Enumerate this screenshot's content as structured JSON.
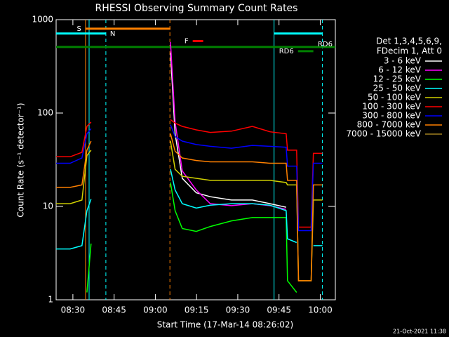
{
  "chart_data": {
    "type": "line",
    "title": "RHESSI Observing Summary Count Rates",
    "xlabel": "Start Time (17-Mar-14 08:26:02)",
    "ylabel": "Count Rate (s⁻¹ detector⁻¹)",
    "footer": "21-Oct-2021 11:38",
    "legend_header": [
      "Det 1,3,4,5,6,9,",
      "FDecim 1, Att 0"
    ],
    "log_y": true,
    "xlim": [
      23.9,
      125.5
    ],
    "ylim": [
      1,
      1000
    ],
    "xticks": [
      {
        "value": 30,
        "label": "08:30"
      },
      {
        "value": 45,
        "label": "08:45"
      },
      {
        "value": 60,
        "label": "09:00"
      },
      {
        "value": 75,
        "label": "09:15"
      },
      {
        "value": 90,
        "label": "09:30"
      },
      {
        "value": 105,
        "label": "09:45"
      },
      {
        "value": 120,
        "label": "10:00"
      }
    ],
    "yticks": [
      1,
      10,
      100,
      1000
    ],
    "x": [
      23.9,
      29.0,
      33.3,
      35.1,
      36.6,
      37.5,
      65.5,
      67.2,
      69.8,
      74.9,
      80.0,
      87.7,
      95.3,
      101.7,
      107.6,
      108.1,
      111.4,
      112.1,
      116.7,
      117.5,
      120.8
    ],
    "series": [
      {
        "name": "3 - 6 keV",
        "color": "#ffffff",
        "values": [
          null,
          null,
          null,
          null,
          null,
          null,
          445,
          60,
          20,
          14,
          12.7,
          11.7,
          11.7,
          10.7,
          9.8,
          null,
          null,
          null,
          null,
          null,
          null
        ]
      },
      {
        "name": "6 - 12 keV",
        "color": "#ff00ff",
        "values": [
          null,
          null,
          null,
          null,
          null,
          null,
          575,
          80,
          24,
          15,
          10.7,
          10.2,
          10.7,
          10.2,
          9.3,
          null,
          null,
          null,
          null,
          null,
          null
        ]
      },
      {
        "name": "12 - 25 keV",
        "color": "#00ff00",
        "values": [
          null,
          null,
          null,
          1.2,
          4,
          null,
          18,
          9,
          5.8,
          5.4,
          6.1,
          7,
          7.6,
          7.6,
          7.6,
          1.6,
          1.2,
          null,
          null,
          null,
          null
        ]
      },
      {
        "name": "25 - 50 keV",
        "color": "#00ffff",
        "values": [
          3.5,
          3.5,
          3.8,
          9,
          12,
          null,
          25,
          15,
          10.7,
          9.6,
          10.3,
          10.7,
          10.7,
          10.3,
          9,
          4.5,
          4.1,
          null,
          null,
          3.8,
          3.8
        ]
      },
      {
        "name": "50 - 100 keV",
        "color": "#d0d000",
        "values": [
          10.7,
          10.7,
          11.7,
          35,
          40,
          null,
          50,
          25,
          21,
          20,
          19,
          19,
          19,
          19,
          18,
          17,
          17,
          1.6,
          1.6,
          11.7,
          11.7
        ]
      },
      {
        "name": "100 - 300 keV",
        "color": "#ff0000",
        "values": [
          34,
          34,
          38,
          72,
          80,
          null,
          85,
          78,
          72,
          66,
          62,
          64,
          72,
          63,
          60,
          40,
          40,
          6,
          6,
          37,
          37
        ]
      },
      {
        "name": "300 - 800 keV",
        "color": "#0000ff",
        "values": [
          29,
          29,
          33,
          60,
          68,
          null,
          75,
          56,
          50,
          46,
          44,
          42,
          45,
          44,
          43,
          27,
          27,
          5.5,
          5.5,
          29,
          29
        ]
      },
      {
        "name": "800 - 7000 keV",
        "color": "#ff8000",
        "values": [
          16,
          16,
          17,
          40,
          50,
          null,
          60,
          39,
          33,
          31,
          30,
          30,
          30,
          29,
          29,
          19,
          19,
          1.6,
          1.6,
          17,
          17
        ]
      },
      {
        "name": "7000 - 15000 keV",
        "color": "#a08020",
        "values": [
          null,
          null,
          null,
          null,
          null,
          null,
          null,
          null,
          null,
          null,
          null,
          null,
          null,
          null,
          null,
          null,
          null,
          null,
          null,
          null,
          null
        ]
      }
    ],
    "flag_bars": [
      {
        "label": "N",
        "color": "#00ffff",
        "x0": 23.9,
        "x1": 42.0,
        "y": 710
      },
      {
        "label": "S",
        "color": "#ff8000",
        "x0": 34.6,
        "x1": 65.5,
        "y": 800
      },
      {
        "label": "F",
        "color": "#ff0000",
        "x0": 73.6,
        "x1": 77.4,
        "y": 590
      },
      {
        "label": "RD6",
        "color": "#008000",
        "x0": 23.9,
        "x1": 125.5,
        "y": 510
      },
      {
        "label": "RD6",
        "color": "#008000",
        "x0": 111.9,
        "x1": 117.5,
        "y": 460
      },
      {
        "color": "#00ffff",
        "x0": 103.2,
        "x1": 120.8,
        "y": 710
      }
    ],
    "event_lines": [
      {
        "x": 34.6,
        "color": "#ff8000",
        "dashed": false
      },
      {
        "x": 35.9,
        "color": "#00ffff",
        "dashed": false
      },
      {
        "x": 42.0,
        "color": "#00ffff",
        "dashed": true
      },
      {
        "x": 65.3,
        "color": "#ff8000",
        "dashed": true
      },
      {
        "x": 103.2,
        "color": "#00ffff",
        "dashed": false
      },
      {
        "x": 120.8,
        "color": "#00ffff",
        "dashed": true
      }
    ]
  }
}
